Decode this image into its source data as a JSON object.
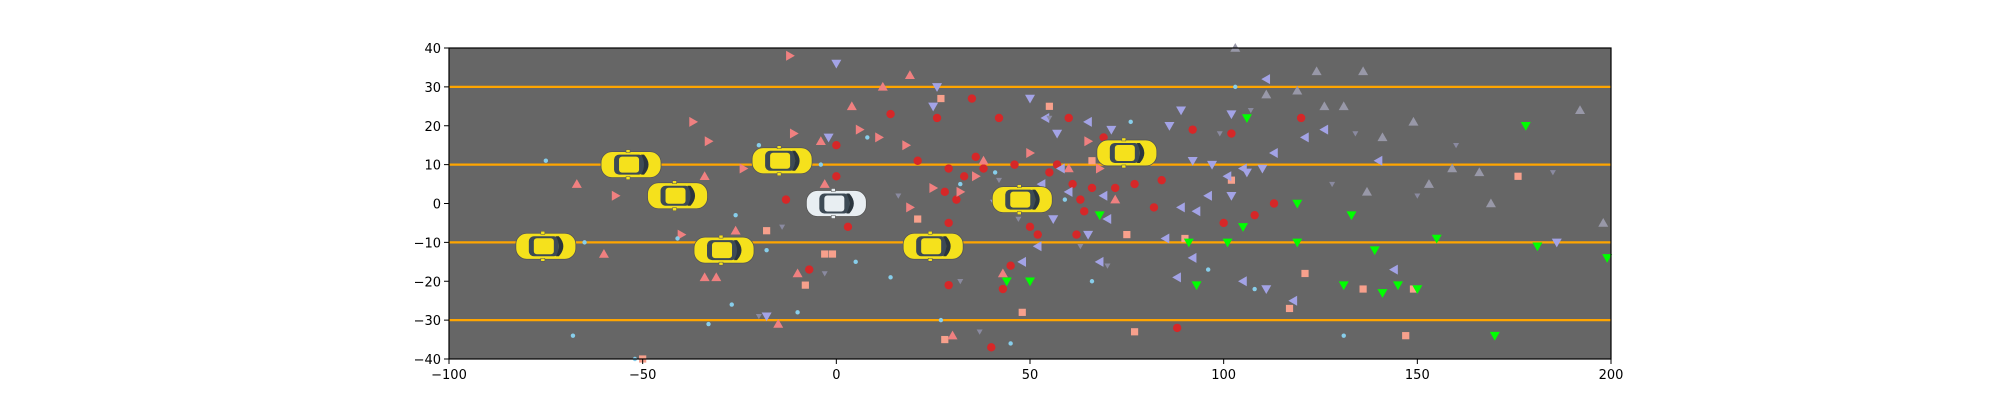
{
  "chart_data": {
    "type": "scatter",
    "title": "",
    "xlabel": "",
    "ylabel": "",
    "xlim": [
      -100,
      200
    ],
    "ylim": [
      -40,
      40
    ],
    "x_ticks": [
      "−100",
      "−50",
      "0",
      "50",
      "100",
      "150",
      "200"
    ],
    "y_ticks": [
      "−40",
      "−30",
      "−20",
      "−10",
      "0",
      "10",
      "20",
      "30",
      "40"
    ],
    "grid": false,
    "background_color": "#666666",
    "lane_lines": {
      "color": "#ffa500",
      "y": [
        -30,
        -10,
        10,
        30
      ]
    },
    "vehicles": {
      "ego": {
        "color": "#e8eef2",
        "positions": [
          [
            0,
            0
          ]
        ]
      },
      "others": {
        "color": "#f5e11c",
        "positions": [
          [
            -75,
            -11
          ],
          [
            -53,
            10
          ],
          [
            -41,
            2
          ],
          [
            -29,
            -12
          ],
          [
            -14,
            11
          ],
          [
            25,
            -11
          ],
          [
            48,
            1
          ],
          [
            75,
            13
          ]
        ]
      }
    },
    "series": [
      {
        "marker": "circle",
        "color": "#d62728",
        "points": [
          [
            -13,
            1
          ],
          [
            -7,
            -17
          ],
          [
            0,
            15
          ],
          [
            0,
            7
          ],
          [
            3,
            -6
          ],
          [
            14,
            23
          ],
          [
            21,
            11
          ],
          [
            26,
            22
          ],
          [
            28,
            3
          ],
          [
            29,
            -5
          ],
          [
            29,
            -21
          ],
          [
            29,
            9
          ],
          [
            31,
            1
          ],
          [
            33,
            7
          ],
          [
            35,
            27
          ],
          [
            36,
            12
          ],
          [
            38,
            9
          ],
          [
            40,
            -37
          ],
          [
            42,
            22
          ],
          [
            43,
            -22
          ],
          [
            45,
            -16
          ],
          [
            46,
            10
          ],
          [
            50,
            -6
          ],
          [
            52,
            -8
          ],
          [
            55,
            8
          ],
          [
            57,
            10
          ],
          [
            60,
            22
          ],
          [
            61,
            5
          ],
          [
            62,
            -8
          ],
          [
            63,
            1
          ],
          [
            64,
            -2
          ],
          [
            66,
            4
          ],
          [
            69,
            17
          ],
          [
            72,
            4
          ],
          [
            77,
            5
          ],
          [
            82,
            -1
          ],
          [
            84,
            6
          ],
          [
            88,
            -32
          ],
          [
            92,
            19
          ],
          [
            100,
            -5
          ],
          [
            102,
            18
          ],
          [
            108,
            -3
          ],
          [
            113,
            0
          ],
          [
            120,
            22
          ]
        ]
      },
      {
        "marker": "square",
        "color": "#f7a08c",
        "points": [
          [
            -50,
            -40
          ],
          [
            -18,
            -7
          ],
          [
            -8,
            -21
          ],
          [
            -3,
            -13
          ],
          [
            -1,
            -13
          ],
          [
            21,
            -4
          ],
          [
            27,
            27
          ],
          [
            28,
            -35
          ],
          [
            48,
            -28
          ],
          [
            55,
            25
          ],
          [
            66,
            11
          ],
          [
            75,
            -8
          ],
          [
            77,
            -33
          ],
          [
            90,
            -9
          ],
          [
            102,
            6
          ],
          [
            117,
            -27
          ],
          [
            121,
            -18
          ],
          [
            136,
            -22
          ],
          [
            147,
            -34
          ],
          [
            149,
            -22
          ],
          [
            176,
            7
          ]
        ]
      },
      {
        "marker": "triangle-up",
        "color": "#f08080",
        "points": [
          [
            -67,
            5
          ],
          [
            -60,
            -13
          ],
          [
            -48,
            12
          ],
          [
            -34,
            7
          ],
          [
            -34,
            -19
          ],
          [
            -31,
            -19
          ],
          [
            -26,
            -7
          ],
          [
            -15,
            -31
          ],
          [
            -10,
            -18
          ],
          [
            -4,
            16
          ],
          [
            -3,
            5
          ],
          [
            4,
            25
          ],
          [
            12,
            30
          ],
          [
            19,
            33
          ],
          [
            30,
            -34
          ],
          [
            38,
            11
          ],
          [
            43,
            -18
          ],
          [
            60,
            9
          ],
          [
            72,
            1
          ]
        ]
      },
      {
        "marker": "triangle-right",
        "color": "#f08080",
        "points": [
          [
            -57,
            2
          ],
          [
            -37,
            21
          ],
          [
            -33,
            16
          ],
          [
            -40,
            3
          ],
          [
            -40,
            -8
          ],
          [
            -11,
            18
          ],
          [
            -12,
            38
          ],
          [
            -24,
            9
          ],
          [
            -10,
            11
          ],
          [
            -16,
            12
          ],
          [
            2,
            2
          ],
          [
            6,
            19
          ],
          [
            11,
            17
          ],
          [
            18,
            15
          ],
          [
            19,
            -1
          ],
          [
            25,
            4
          ],
          [
            32,
            3
          ],
          [
            36,
            7
          ],
          [
            47,
            3
          ],
          [
            53,
            -1
          ],
          [
            50,
            13
          ],
          [
            65,
            16
          ],
          [
            68,
            9
          ]
        ]
      },
      {
        "marker": "triangle-left",
        "color": "#a3a3e6",
        "points": [
          [
            48,
            -15
          ],
          [
            52,
            -11
          ],
          [
            53,
            5
          ],
          [
            54,
            22
          ],
          [
            58,
            9
          ],
          [
            60,
            3
          ],
          [
            65,
            21
          ],
          [
            68,
            -15
          ],
          [
            69,
            2
          ],
          [
            70,
            -4
          ],
          [
            76,
            13
          ],
          [
            85,
            -9
          ],
          [
            88,
            -19
          ],
          [
            89,
            -1
          ],
          [
            92,
            -14
          ],
          [
            93,
            -2
          ],
          [
            96,
            2
          ],
          [
            101,
            7
          ],
          [
            105,
            9
          ],
          [
            105,
            -20
          ],
          [
            111,
            32
          ],
          [
            113,
            13
          ],
          [
            118,
            -25
          ],
          [
            121,
            17
          ],
          [
            126,
            19
          ],
          [
            140,
            11
          ],
          [
            144,
            -17
          ]
        ]
      },
      {
        "marker": "triangle-down",
        "color": "#a3a3e6",
        "points": [
          [
            0,
            36
          ],
          [
            -2,
            17
          ],
          [
            -18,
            -29
          ],
          [
            25,
            25
          ],
          [
            26,
            30
          ],
          [
            41,
            0
          ],
          [
            50,
            27
          ],
          [
            56,
            -4
          ],
          [
            57,
            18
          ],
          [
            65,
            -8
          ],
          [
            71,
            19
          ],
          [
            71,
            14
          ],
          [
            86,
            20
          ],
          [
            89,
            24
          ],
          [
            92,
            11
          ],
          [
            97,
            10
          ],
          [
            102,
            23
          ],
          [
            102,
            2
          ],
          [
            106,
            8
          ],
          [
            110,
            9
          ],
          [
            111,
            -22
          ],
          [
            186,
            -10
          ]
        ]
      },
      {
        "marker": "triangle-up",
        "color": "#9898a8",
        "points": [
          [
            103,
            40
          ],
          [
            111,
            28
          ],
          [
            119,
            29
          ],
          [
            124,
            34
          ],
          [
            126,
            25
          ],
          [
            131,
            25
          ],
          [
            136,
            34
          ],
          [
            137,
            3
          ],
          [
            141,
            17
          ],
          [
            149,
            21
          ],
          [
            153,
            5
          ],
          [
            159,
            9
          ],
          [
            166,
            8
          ],
          [
            169,
            0
          ],
          [
            192,
            24
          ],
          [
            198,
            -5
          ]
        ]
      },
      {
        "marker": "triangle-down",
        "color": "#00ff00",
        "points": [
          [
            44,
            -20
          ],
          [
            50,
            -20
          ],
          [
            68,
            -3
          ],
          [
            91,
            -10
          ],
          [
            93,
            -21
          ],
          [
            101,
            -10
          ],
          [
            105,
            -6
          ],
          [
            106,
            22
          ],
          [
            119,
            0
          ],
          [
            119,
            -10
          ],
          [
            131,
            -21
          ],
          [
            133,
            -3
          ],
          [
            139,
            -12
          ],
          [
            141,
            -23
          ],
          [
            145,
            -21
          ],
          [
            150,
            -22
          ],
          [
            155,
            -9
          ],
          [
            170,
            -34
          ],
          [
            178,
            20
          ],
          [
            181,
            -11
          ],
          [
            199,
            -14
          ]
        ]
      },
      {
        "marker": "circle-small",
        "color": "#87ceeb",
        "points": [
          [
            -75,
            11
          ],
          [
            -68,
            -34
          ],
          [
            -65,
            -10
          ],
          [
            -52,
            -40
          ],
          [
            -41,
            -9
          ],
          [
            -33,
            -31
          ],
          [
            -27,
            -26
          ],
          [
            -26,
            -3
          ],
          [
            -20,
            15
          ],
          [
            -18,
            -12
          ],
          [
            -10,
            -28
          ],
          [
            -4,
            10
          ],
          [
            5,
            -15
          ],
          [
            8,
            17
          ],
          [
            14,
            -19
          ],
          [
            27,
            -30
          ],
          [
            32,
            5
          ],
          [
            41,
            8
          ],
          [
            45,
            -36
          ],
          [
            59,
            1
          ],
          [
            66,
            -20
          ],
          [
            76,
            21
          ],
          [
            96,
            -17
          ],
          [
            103,
            30
          ],
          [
            108,
            -22
          ],
          [
            131,
            -34
          ]
        ]
      },
      {
        "marker": "triangle-down-small",
        "color": "#8a8aa0",
        "points": [
          [
            -20,
            -29
          ],
          [
            -14,
            -6
          ],
          [
            -3,
            -18
          ],
          [
            16,
            2
          ],
          [
            32,
            -20
          ],
          [
            37,
            -33
          ],
          [
            42,
            6
          ],
          [
            47,
            -4
          ],
          [
            55,
            22
          ],
          [
            63,
            -11
          ],
          [
            70,
            -16
          ],
          [
            99,
            18
          ],
          [
            107,
            24
          ],
          [
            128,
            5
          ],
          [
            134,
            18
          ],
          [
            150,
            2
          ],
          [
            160,
            15
          ],
          [
            185,
            8
          ]
        ]
      }
    ]
  }
}
